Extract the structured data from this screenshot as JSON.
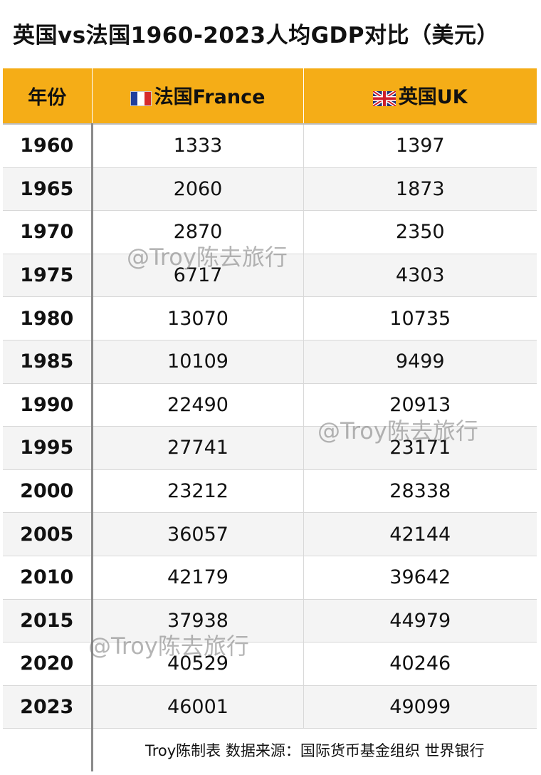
{
  "title": "英国vs法国1960-2023人均GDP对比（美元）",
  "headers": {
    "year": "年份",
    "france": "法国France",
    "uk": "英国UK",
    "france_flag_icon": "flag-france-icon",
    "uk_flag_icon": "flag-uk-icon"
  },
  "footer": "Troy陈制表 数据来源：国际货币基金组织 世界银行",
  "watermark": "@Troy陈去旅行",
  "colors": {
    "header_bg": "#f5ad17",
    "row_alt": "#f4f4f4"
  },
  "chart_data": {
    "type": "table",
    "title": "英国vs法国1960-2023人均GDP对比（美元）",
    "columns": [
      "年份",
      "法国France",
      "英国UK"
    ],
    "rows": [
      [
        "1960",
        "1333",
        "1397"
      ],
      [
        "1965",
        "2060",
        "1873"
      ],
      [
        "1970",
        "2870",
        "2350"
      ],
      [
        "1975",
        "6717",
        "4303"
      ],
      [
        "1980",
        "13070",
        "10735"
      ],
      [
        "1985",
        "10109",
        "9499"
      ],
      [
        "1990",
        "22490",
        "20913"
      ],
      [
        "1995",
        "27741",
        "23171"
      ],
      [
        "2000",
        "23212",
        "28338"
      ],
      [
        "2005",
        "36057",
        "42144"
      ],
      [
        "2010",
        "42179",
        "39642"
      ],
      [
        "2015",
        "37938",
        "44979"
      ],
      [
        "2020",
        "40529",
        "40246"
      ],
      [
        "2023",
        "46001",
        "49099"
      ]
    ]
  }
}
